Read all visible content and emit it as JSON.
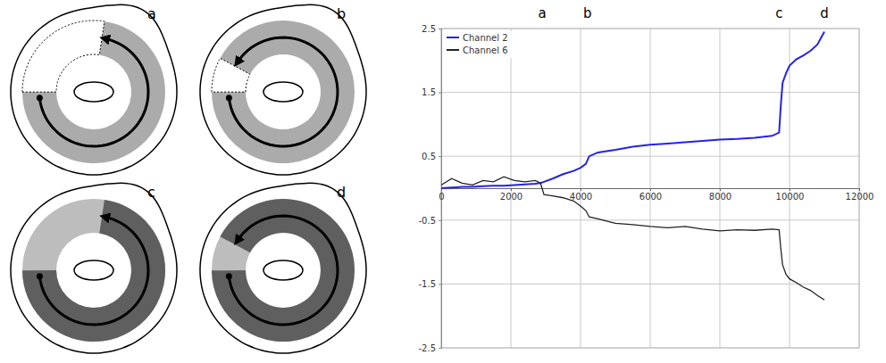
{
  "panels": [
    "a",
    "b",
    "c",
    "d"
  ],
  "chart_data": {
    "type": "line",
    "x": [
      0,
      300,
      600,
      900,
      1200,
      1500,
      1800,
      2100,
      2400,
      2700,
      2850,
      2950,
      3200,
      3500,
      3800,
      4000,
      4150,
      4250,
      4500,
      5000,
      5500,
      6000,
      6500,
      7000,
      7500,
      8000,
      8500,
      9000,
      9500,
      9700,
      9750,
      9800,
      9900,
      10000,
      10200,
      10400,
      10600,
      10800,
      11000
    ],
    "series": [
      {
        "name": "Channel 2",
        "color": "#2323e6",
        "values": [
          0,
          0.01,
          0.02,
          0.02,
          0.03,
          0.04,
          0.04,
          0.05,
          0.06,
          0.07,
          0.08,
          0.1,
          0.15,
          0.22,
          0.27,
          0.32,
          0.38,
          0.5,
          0.56,
          0.6,
          0.65,
          0.68,
          0.7,
          0.72,
          0.74,
          0.76,
          0.77,
          0.79,
          0.82,
          0.87,
          1.3,
          1.65,
          1.8,
          1.92,
          2.02,
          2.08,
          2.15,
          2.25,
          2.45
        ]
      },
      {
        "name": "Channel 6",
        "color": "#222222",
        "values": [
          0.05,
          0.15,
          0.08,
          0.05,
          0.12,
          0.1,
          0.18,
          0.12,
          0.1,
          0.12,
          0.08,
          -0.1,
          -0.12,
          -0.15,
          -0.2,
          -0.28,
          -0.35,
          -0.45,
          -0.48,
          -0.55,
          -0.57,
          -0.6,
          -0.62,
          -0.6,
          -0.64,
          -0.67,
          -0.65,
          -0.66,
          -0.64,
          -0.65,
          -0.95,
          -1.2,
          -1.35,
          -1.42,
          -1.48,
          -1.55,
          -1.6,
          -1.68,
          -1.75
        ]
      }
    ],
    "xlim": [
      0,
      12000
    ],
    "xticks": [
      0,
      2000,
      4000,
      6000,
      8000,
      10000,
      12000
    ],
    "ylim": [
      -2.5,
      2.5
    ],
    "yticks": [
      -2.5,
      -1.5,
      -0.5,
      0.5,
      1.5,
      2.5
    ],
    "grid": true,
    "legend": "upper left",
    "annotations": [
      {
        "text": "a",
        "x": 2900
      },
      {
        "text": "b",
        "x": 4200
      },
      {
        "text": "c",
        "x": 9700
      },
      {
        "text": "d",
        "x": 11000
      }
    ]
  }
}
